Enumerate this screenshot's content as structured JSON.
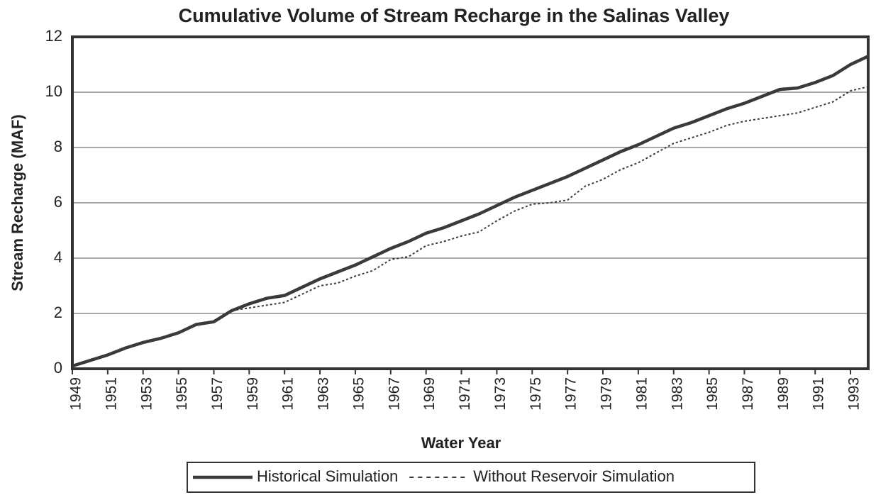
{
  "chart_data": {
    "type": "line",
    "title": "Cumulative Volume of Stream Recharge in the Salinas Valley",
    "x_label": "Water Year",
    "y_label": "Stream Recharge (MAF)",
    "x": [
      1949,
      1950,
      1951,
      1952,
      1953,
      1954,
      1955,
      1956,
      1957,
      1958,
      1959,
      1960,
      1961,
      1962,
      1963,
      1964,
      1965,
      1966,
      1967,
      1968,
      1969,
      1970,
      1971,
      1972,
      1973,
      1974,
      1975,
      1976,
      1977,
      1978,
      1979,
      1980,
      1981,
      1982,
      1983,
      1984,
      1985,
      1986,
      1987,
      1988,
      1989,
      1990,
      1991,
      1992,
      1993,
      1994
    ],
    "series": [
      {
        "name": "Historical Simulation",
        "color": "#3a3a3a",
        "style": "solid",
        "values": [
          0.1,
          0.3,
          0.5,
          0.75,
          0.95,
          1.1,
          1.3,
          1.6,
          1.7,
          2.1,
          2.35,
          2.55,
          2.65,
          2.95,
          3.25,
          3.5,
          3.75,
          4.05,
          4.35,
          4.6,
          4.9,
          5.1,
          5.35,
          5.6,
          5.9,
          6.2,
          6.45,
          6.7,
          6.95,
          7.25,
          7.55,
          7.85,
          8.1,
          8.4,
          8.7,
          8.9,
          9.15,
          9.4,
          9.6,
          9.85,
          10.1,
          10.15,
          10.35,
          10.6,
          11.0,
          11.3
        ]
      },
      {
        "name": "Without Reservoir Simulation",
        "color": "#3a3a3a",
        "style": "dotted",
        "values": [
          0.1,
          0.3,
          0.5,
          0.75,
          0.95,
          1.1,
          1.3,
          1.6,
          1.7,
          2.1,
          2.2,
          2.3,
          2.4,
          2.7,
          3.0,
          3.1,
          3.35,
          3.55,
          3.95,
          4.05,
          4.45,
          4.6,
          4.8,
          4.95,
          5.35,
          5.7,
          5.95,
          6.0,
          6.1,
          6.6,
          6.85,
          7.2,
          7.45,
          7.8,
          8.15,
          8.35,
          8.55,
          8.8,
          8.95,
          9.05,
          9.15,
          9.25,
          9.45,
          9.65,
          10.05,
          10.2
        ]
      }
    ],
    "xlim": [
      1949,
      1994
    ],
    "xticks": [
      1949,
      1951,
      1953,
      1955,
      1957,
      1959,
      1961,
      1963,
      1965,
      1967,
      1969,
      1971,
      1973,
      1975,
      1977,
      1979,
      1981,
      1983,
      1985,
      1987,
      1989,
      1991,
      1993
    ],
    "ylim": [
      0,
      12
    ],
    "yticks": [
      0,
      2,
      4,
      6,
      8,
      10,
      12
    ],
    "grid": true,
    "legend": "bottom"
  }
}
